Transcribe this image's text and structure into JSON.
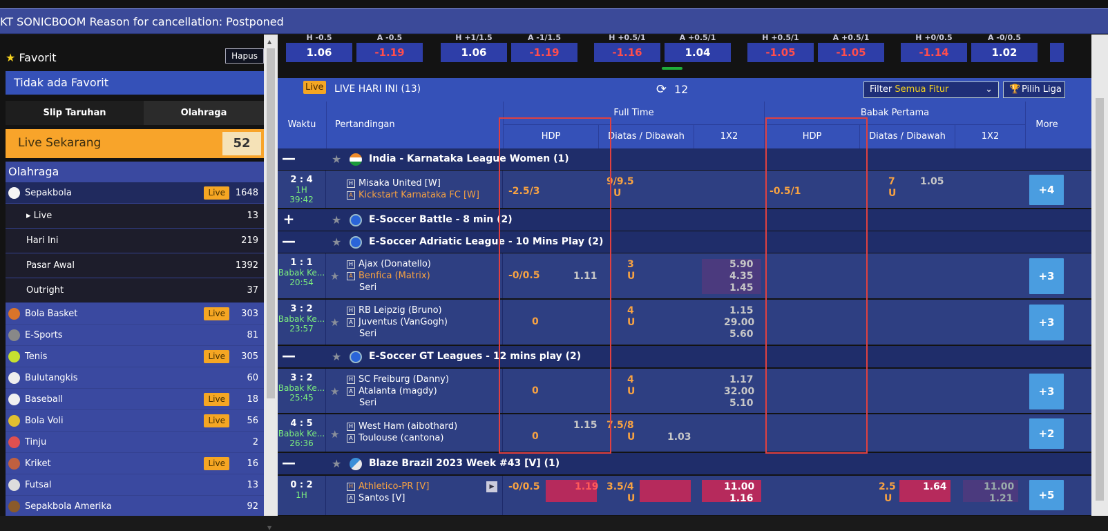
{
  "marquee": "KT SONICBOOM Reason for cancellation: Postponed",
  "sidebar": {
    "fav_title": "Favorit",
    "hapus": "Hapus",
    "no_fav": "Tidak ada Favorit",
    "tab1": "Slip Taruhan",
    "tab2": "Olahraga",
    "live_now_label": "Live Sekarang",
    "live_now_count": "52",
    "olahraga": "Olahraga",
    "live_label": "Live",
    "sports": [
      {
        "name": "Sepakbola",
        "count": "1648",
        "live": true,
        "sel": true
      },
      {
        "name": "Live",
        "count": "13",
        "sub": true,
        "caret": true
      },
      {
        "name": "Hari Ini",
        "count": "219",
        "sub": true
      },
      {
        "name": "Pasar Awal",
        "count": "1392",
        "sub": true
      },
      {
        "name": "Outright",
        "count": "37",
        "sub": true
      },
      {
        "name": "Bola Basket",
        "count": "303",
        "live": true
      },
      {
        "name": "E-Sports",
        "count": "81"
      },
      {
        "name": "Tenis",
        "count": "305",
        "live": true
      },
      {
        "name": "Bulutangkis",
        "count": "60"
      },
      {
        "name": "Baseball",
        "count": "18",
        "live": true
      },
      {
        "name": "Bola Voli",
        "count": "56",
        "live": true
      },
      {
        "name": "Tinju",
        "count": "2"
      },
      {
        "name": "Kriket",
        "count": "16",
        "live": true
      },
      {
        "name": "Futsal",
        "count": "13"
      },
      {
        "name": "Sepakbola Amerika",
        "count": "92"
      }
    ]
  },
  "strip": [
    {
      "lbl": "H -0.5",
      "val": "1.06"
    },
    {
      "lbl": "A -0.5",
      "val": "-1.19",
      "neg": true
    },
    {
      "lbl": "H +1/1.5",
      "val": "1.06"
    },
    {
      "lbl": "A -1/1.5",
      "val": "-1.19",
      "neg": true
    },
    {
      "lbl": "H +0.5/1",
      "val": "-1.16",
      "neg": true
    },
    {
      "lbl": "A +0.5/1",
      "val": "1.04"
    },
    {
      "lbl": "H +0.5/1",
      "val": "-1.05",
      "neg": true
    },
    {
      "lbl": "A +0.5/1",
      "val": "-1.05",
      "neg": true
    },
    {
      "lbl": "H +0/0.5",
      "val": "-1.14",
      "neg": true
    },
    {
      "lbl": "A -0/0.5",
      "val": "1.02"
    }
  ],
  "livehead": {
    "badge": "Live",
    "title": "LIVE HARI INI (13)",
    "refresh": "12",
    "filter_label": "Filter ",
    "filter_val": "Semua Fitur",
    "pilih": "Pilih Liga"
  },
  "thead": {
    "waktu": "Waktu",
    "pertandingan": "Pertandingan",
    "fulltime": "Full Time",
    "babak": "Babak Pertama",
    "more": "More",
    "hdp": "HDP",
    "ou": "Diatas / Dibawah",
    "x12": "1X2"
  },
  "leagues": [
    {
      "name": "India - Karnataka League Women (1)",
      "tog": "—"
    },
    {
      "name": "E-Soccer Battle - 8 min (2)",
      "tog": "+"
    },
    {
      "name": "E-Soccer Adriatic League - 10 Mins Play (2)",
      "tog": "—"
    },
    {
      "name": "E-Soccer GT Leagues - 12 mins play (2)",
      "tog": "—"
    },
    {
      "name": "Blaze Brazil 2023 Week #43 [V] (1)",
      "tog": "—"
    }
  ],
  "matches": [
    {
      "score": "2 : 4",
      "p1": "1H",
      "p2": "39:42",
      "home": "Misaka United [W]",
      "away": "Kickstart Karnataka FC [W]",
      "hdp": "-2.5/3",
      "ou": "9/9.5",
      "ouu": "U",
      "fh_hdp": "-0.5/1",
      "fh_ou": "7",
      "fh_ouu": "U",
      "fh_o1": "1.05",
      "more": "+4"
    },
    {
      "score": "1 : 1",
      "p1": "Babak Ke...",
      "p2": "20:54",
      "home": "Ajax (Donatello)",
      "away": "Benfica (Matrix)",
      "draw": "Seri",
      "hdp": "-0/0.5",
      "hdp2": "1.11",
      "ou": "3",
      "ouu": "U",
      "x1": "5.90",
      "x2": "4.35",
      "x3": "1.45",
      "more": "+3"
    },
    {
      "score": "3 : 2",
      "p1": "Babak Ke...",
      "p2": "23:57",
      "home": "RB Leipzig (Bruno)",
      "away": "Juventus (VanGogh)",
      "draw": "Seri",
      "hdp": "0",
      "ou": "4",
      "ouu": "U",
      "x1": "1.15",
      "x2": "29.00",
      "x3": "5.60",
      "more": "+3"
    },
    {
      "score": "3 : 2",
      "p1": "Babak Ke...",
      "p2": "25:45",
      "home": "SC Freiburg (Danny)",
      "away": "Atalanta (magdy)",
      "draw": "Seri",
      "hdp": "0",
      "ou": "4",
      "ouu": "U",
      "x1": "1.17",
      "x2": "32.00",
      "x3": "5.10",
      "more": "+3"
    },
    {
      "score": "4 : 5",
      "p1": "Babak Ke...",
      "p2": "26:36",
      "home": "West Ham (aibothard)",
      "away": "Toulouse (cantona)",
      "hdp": "0",
      "hdp1": "1.15",
      "ou": "7.5/8",
      "ouu": "U",
      "ou2": "1.03",
      "more": "+2"
    },
    {
      "score": "0 : 2",
      "p1": "1H",
      "home": "Athletico-PR [V]",
      "away": "Santos [V]",
      "hdp": "-0/0.5",
      "h1": "1.19",
      "ou": "3.5/4",
      "ouu": "U",
      "x1": "11.00",
      "x2": "1.16",
      "fh_ou": "2.5",
      "fh_ouu": "U",
      "fh_o1": "1.64",
      "fh_x1": "11.00",
      "fh_x2": "1.21",
      "more": "+5"
    }
  ]
}
